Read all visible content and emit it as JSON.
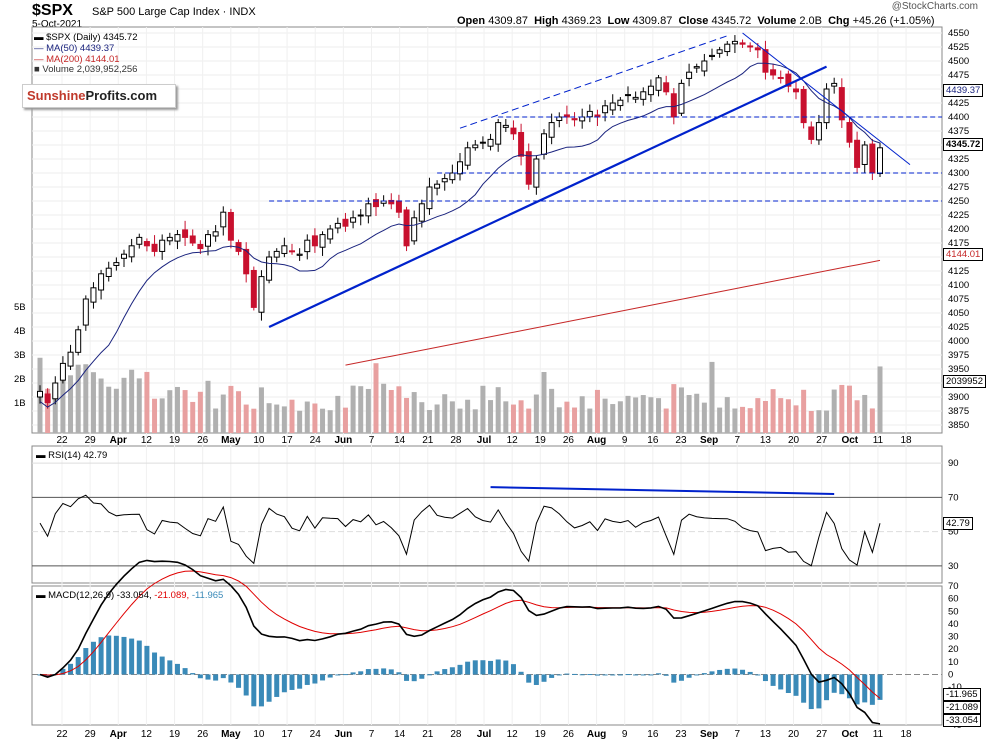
{
  "header": {
    "symbol": "$SPX",
    "description": "S&P 500 Large Cap Index",
    "exchange": "INDX",
    "date": "5-Oct-2021",
    "open_label": "Open",
    "open": "4309.87",
    "high_label": "High",
    "high": "4369.23",
    "low_label": "Low",
    "low": "4309.87",
    "close_label": "Close",
    "close": "4345.72",
    "volume_label": "Volume",
    "volume": "2.0B",
    "chg_label": "Chg",
    "chg": "+45.26 (+1.05%)",
    "copyright": "@StockCharts.com"
  },
  "legend": {
    "price": "$SPX (Daily) 4345.72",
    "ma50": "MA(50) 4439.37",
    "ma200": "MA(200) 4144.01",
    "volume": "Volume 2,039,952,256"
  },
  "logo": {
    "part1": "Sunshine",
    "part2": "Profits.com"
  },
  "panels": {
    "rsi_label": "RSI(14) 42.79",
    "macd_label": "MACD(12,26,9)",
    "macd_v1": "-33.054,",
    "macd_v2": "-21.089,",
    "macd_v3": "-11.965"
  },
  "tags": {
    "ma50": "4439.37",
    "close": "4345.72",
    "ma200": "4144.01",
    "volume": "2039952",
    "rsi": "42.79",
    "macd_hist": "-11.965",
    "macd_signal": "-21.089",
    "macd_line": "-33.054"
  },
  "colors": {
    "up": "#000000",
    "down": "#c8102e",
    "ma50": "#1a237e",
    "ma200": "#c62828",
    "trend": "#0022cc",
    "vol_up": "#b0b0b0",
    "vol_down": "#e8a0a0",
    "rsi": "#000000",
    "macd": "#000000",
    "signal": "#e00000",
    "hist": "#3a8ab8"
  },
  "chart_data": [
    {
      "type": "candlestick",
      "title": "$SPX S&P 500 Large Cap Index",
      "ylim": [
        3850,
        4550
      ],
      "y_ticks": [
        "4550",
        "4525",
        "4500",
        "4475",
        "4450",
        "4425",
        "4400",
        "4375",
        "4350",
        "4325",
        "4300",
        "4275",
        "4250",
        "4225",
        "4200",
        "4175",
        "4150",
        "4125",
        "4100",
        "4075",
        "4050",
        "4025",
        "4000",
        "3975",
        "3950",
        "3925",
        "3900",
        "3875",
        "3850"
      ],
      "x_ticks": [
        "22",
        "29",
        "Apr",
        "12",
        "19",
        "26",
        "May",
        "10",
        "17",
        "24",
        "Jun",
        "7",
        "14",
        "21",
        "28",
        "Jul",
        "12",
        "19",
        "26",
        "Aug",
        "9",
        "16",
        "23",
        "Sep",
        "7",
        "13",
        "20",
        "27",
        "Oct",
        "11",
        "18"
      ],
      "close_series": [
        3910,
        3890,
        3925,
        3960,
        3980,
        4020,
        4075,
        4095,
        4120,
        4130,
        4140,
        4155,
        4170,
        4185,
        4170,
        4160,
        4180,
        4185,
        4190,
        4185,
        4175,
        4165,
        4190,
        4195,
        4230,
        4180,
        4160,
        4120,
        4060,
        4115,
        4150,
        4160,
        4170,
        4160,
        4155,
        4180,
        4170,
        4190,
        4200,
        4210,
        4205,
        4220,
        4225,
        4245,
        4240,
        4250,
        4245,
        4230,
        4170,
        4220,
        4245,
        4275,
        4280,
        4290,
        4300,
        4320,
        4345,
        4350,
        4355,
        4360,
        4390,
        4385,
        4370,
        4330,
        4280,
        4325,
        4370,
        4390,
        4400,
        4400,
        4395,
        4400,
        4410,
        4400,
        4420,
        4425,
        4430,
        4440,
        4435,
        4445,
        4455,
        4470,
        4445,
        4400,
        4460,
        4480,
        4490,
        4500,
        4510,
        4520,
        4530,
        4535,
        4530,
        4525,
        4520,
        4480,
        4475,
        4470,
        4455,
        4445,
        4390,
        4360,
        4390,
        4450,
        4460,
        4395,
        4355,
        4310,
        4350,
        4300,
        4345
      ],
      "ma50": {
        "name": "MA(50)",
        "last": 4439.37
      },
      "ma200": {
        "name": "MA(200)",
        "last": 4144.01
      },
      "horizontal_levels": [
        4400,
        4300,
        4250
      ],
      "volume_ticks": [
        "5B",
        "4B",
        "3B",
        "2B",
        "1B"
      ]
    },
    {
      "type": "line",
      "name": "RSI(14)",
      "ylim": [
        20,
        100
      ],
      "y_ticks": [
        "90",
        "70",
        "50",
        "30"
      ],
      "last": 42.79
    },
    {
      "type": "line",
      "name": "MACD(12,26,9)",
      "ylim": [
        -40,
        70
      ],
      "y_ticks": [
        "70",
        "60",
        "50",
        "40",
        "30",
        "20",
        "10",
        "0",
        "-10",
        "-20",
        "-30",
        "-40"
      ],
      "series": [
        {
          "name": "MACD",
          "last": -33.054
        },
        {
          "name": "Signal",
          "last": -21.089
        },
        {
          "name": "Histogram",
          "last": -11.965
        }
      ]
    }
  ]
}
